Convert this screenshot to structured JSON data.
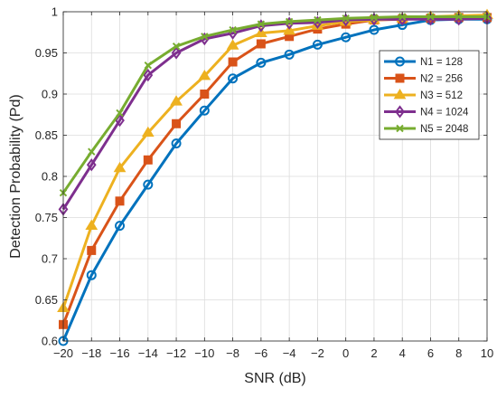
{
  "chart_data": {
    "type": "line",
    "title": "",
    "xlabel": "SNR (dB)",
    "ylabel": "Detection Probability (Pd)",
    "x": [
      -20,
      -18,
      -16,
      -14,
      -12,
      -10,
      -8,
      -6,
      -4,
      -2,
      0,
      2,
      4,
      6,
      8,
      10
    ],
    "xlim": [
      -20,
      10
    ],
    "ylim": [
      0.6,
      1
    ],
    "xticks": [
      -20,
      -18,
      -16,
      -14,
      -12,
      -10,
      -8,
      -6,
      -4,
      -2,
      0,
      2,
      4,
      6,
      8,
      10
    ],
    "yticks": [
      0.6,
      0.65,
      0.7,
      0.75,
      0.8,
      0.85,
      0.9,
      0.95,
      1
    ],
    "xtick_labels": [
      "−20",
      "−18",
      "−16",
      "−14",
      "−12",
      "−10",
      "−8",
      "−6",
      "−4",
      "−2",
      "0",
      "2",
      "4",
      "6",
      "8",
      "10"
    ],
    "ytick_labels": [
      "0.6",
      "0.65",
      "0.7",
      "0.75",
      "0.8",
      "0.85",
      "0.9",
      "0.95",
      "1"
    ],
    "grid": true,
    "legend_position": "top-right",
    "series": [
      {
        "name": "N1 = 128",
        "color": "#0072BD",
        "marker": "circle",
        "values": [
          0.6,
          0.68,
          0.74,
          0.79,
          0.84,
          0.88,
          0.919,
          0.938,
          0.948,
          0.96,
          0.969,
          0.978,
          0.984,
          0.99,
          0.991,
          0.991
        ]
      },
      {
        "name": "N2 = 256",
        "color": "#D95319",
        "marker": "square",
        "values": [
          0.62,
          0.71,
          0.77,
          0.82,
          0.864,
          0.9,
          0.939,
          0.961,
          0.97,
          0.979,
          0.985,
          0.99,
          0.991,
          0.992,
          0.993,
          0.993
        ]
      },
      {
        "name": "N3 = 512",
        "color": "#EDB120",
        "marker": "triangle",
        "values": [
          0.64,
          0.74,
          0.81,
          0.853,
          0.891,
          0.922,
          0.959,
          0.974,
          0.977,
          0.983,
          0.988,
          0.99,
          0.992,
          0.994,
          0.995,
          0.996
        ]
      },
      {
        "name": "N4 = 1024",
        "color": "#7E2F8E",
        "marker": "diamond",
        "values": [
          0.76,
          0.814,
          0.868,
          0.923,
          0.95,
          0.967,
          0.974,
          0.983,
          0.986,
          0.987,
          0.99,
          0.991,
          0.991,
          0.991,
          0.991,
          0.992
        ]
      },
      {
        "name": "N5 = 2048",
        "color": "#77AC30",
        "marker": "x",
        "values": [
          0.78,
          0.83,
          0.877,
          0.935,
          0.958,
          0.97,
          0.978,
          0.985,
          0.988,
          0.99,
          0.992,
          0.993,
          0.994,
          0.994,
          0.994,
          0.994
        ]
      }
    ]
  }
}
